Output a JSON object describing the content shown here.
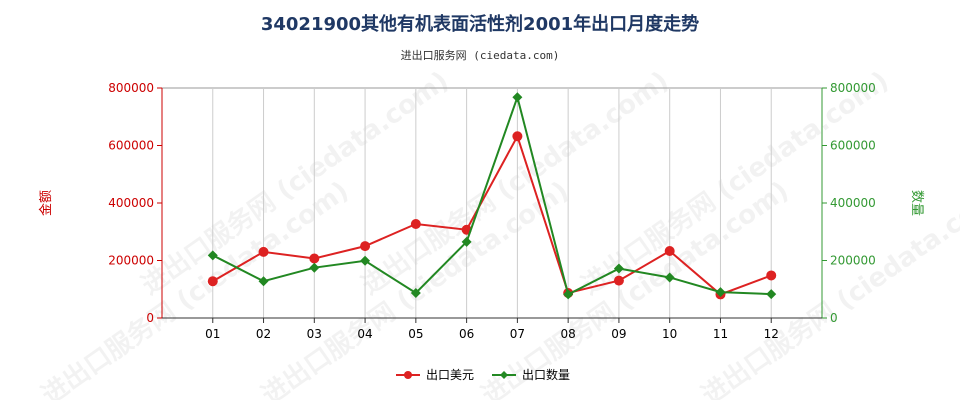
{
  "chart_data": {
    "type": "line",
    "title": "34021900其他有机表面活性剂2001年出口月度走势",
    "subtitle": "进出口服务网 (ciedata.com)",
    "watermark": "进出口服务网 (ciedata.com)",
    "categories": [
      "01",
      "02",
      "03",
      "04",
      "05",
      "06",
      "07",
      "08",
      "09",
      "10",
      "11",
      "12"
    ],
    "ylabel_left": "金额",
    "ylabel_right": "数量",
    "ylim_left": [
      0,
      800000
    ],
    "ylim_right": [
      0,
      800000
    ],
    "yticks_left": [
      "0",
      "200000",
      "400000",
      "600000",
      "800000"
    ],
    "yticks_right": [
      "0",
      "200000",
      "400000",
      "600000",
      "800000"
    ],
    "grid": "vertical",
    "legend_position": "bottom",
    "series": [
      {
        "name": "出口美元",
        "axis": "left",
        "color": "#dd2222",
        "marker": "circle",
        "values": [
          128000,
          230000,
          207000,
          250000,
          327000,
          307000,
          632000,
          87000,
          130000,
          233000,
          82000,
          148000
        ]
      },
      {
        "name": "出口数量",
        "axis": "right",
        "color": "#228822",
        "marker": "diamond",
        "values": [
          218000,
          128000,
          175000,
          199000,
          87000,
          265000,
          768000,
          82000,
          172000,
          141000,
          90000,
          83000
        ]
      }
    ]
  }
}
